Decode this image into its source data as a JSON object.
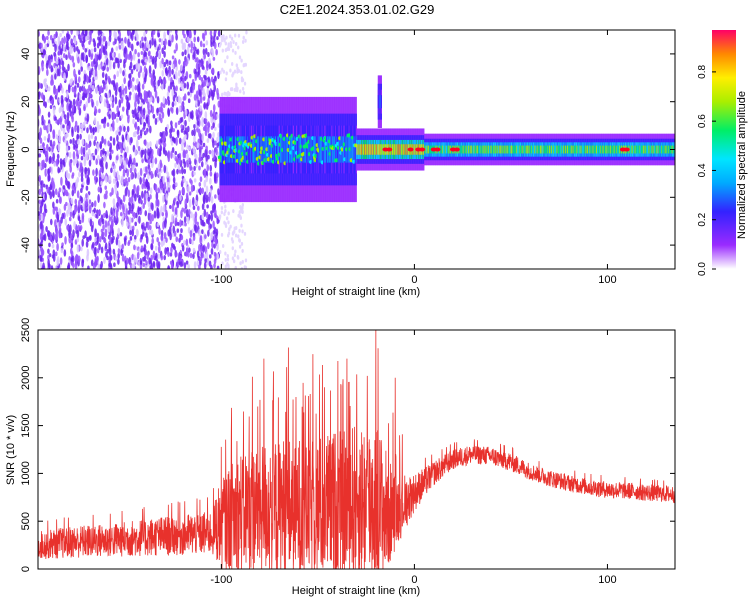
{
  "title": "C2E1.2024.353.01.02.G29",
  "colors": {
    "snr_line": "#e8312c",
    "noise_purple": "#7a2cf0",
    "spectrum_colormap": [
      "#ffffff",
      "#9a2bff",
      "#3322ff",
      "#00aaff",
      "#00e5ff",
      "#00ee66",
      "#aaee00",
      "#ffee00",
      "#ff8800",
      "#ff0022"
    ]
  },
  "chart_data": [
    {
      "type": "heatmap",
      "title": "C2E1.2024.353.01.02.G29",
      "xlabel": "Height of straight line (km)",
      "ylabel": "Frequency (Hz)",
      "xlim": [
        -195,
        135
      ],
      "ylim": [
        -50,
        50
      ],
      "x_ticks": [
        -100,
        0,
        100
      ],
      "y_ticks": [
        -40,
        -20,
        0,
        20,
        40
      ],
      "colorbar": {
        "label": "Normalized spectral amplitude",
        "range": [
          0,
          0.97
        ],
        "ticks": [
          "0.0",
          "0.2",
          "0.4",
          "0.6",
          "0.8"
        ]
      },
      "regions": [
        {
          "x_range": [
            -195,
            -101
          ],
          "frequency_spread_hz": [
            -50,
            50
          ],
          "amplitude": 0.1,
          "pattern": "scattered noise"
        },
        {
          "x_range": [
            -101,
            -30
          ],
          "frequency_center_hz": 0,
          "half_width_hz": 10,
          "amplitude": 0.35,
          "pattern": "broad signal"
        },
        {
          "x_range": [
            -30,
            5
          ],
          "frequency_center_hz": 0,
          "half_width_hz": 4,
          "amplitude": 0.9,
          "pattern": "narrowing signal"
        },
        {
          "x_range": [
            5,
            135
          ],
          "frequency_center_hz": 0,
          "half_width_hz": 3,
          "amplitude": 0.7,
          "pattern": "narrow line"
        },
        {
          "x_range": [
            -19,
            -17
          ],
          "frequency_center_hz": 20,
          "half_width_hz": 5,
          "amplitude": 0.3,
          "pattern": "spike"
        }
      ],
      "peak_markers_x": [
        -15,
        -13,
        -2,
        2,
        4,
        10,
        12,
        20,
        22,
        108,
        110
      ]
    },
    {
      "type": "line",
      "xlabel": "Height of straight line (km)",
      "ylabel": "SNR (10 * v/v)",
      "xlim": [
        -195,
        135
      ],
      "ylim": [
        0,
        2500
      ],
      "x_ticks": [
        -100,
        0,
        100
      ],
      "y_ticks": [
        0,
        500,
        1000,
        1500,
        2000,
        2500
      ],
      "series": [
        {
          "x": [
            -195,
            -180,
            -160,
            -140,
            -120,
            -105,
            -100,
            -90,
            -80,
            -70,
            -60,
            -50,
            -40,
            -30,
            -20,
            -15,
            -10,
            0,
            10,
            20,
            30,
            40,
            50,
            60,
            70,
            80,
            90,
            100,
            110,
            120,
            135
          ],
          "baseline": [
            250,
            280,
            300,
            330,
            360,
            380,
            500,
            600,
            650,
            650,
            640,
            650,
            680,
            700,
            700,
            600,
            600,
            800,
            1000,
            1150,
            1200,
            1180,
            1120,
            1020,
            950,
            900,
            860,
            830,
            820,
            800,
            780
          ],
          "spread": [
            150,
            170,
            180,
            200,
            220,
            240,
            500,
            650,
            700,
            750,
            750,
            750,
            800,
            850,
            900,
            700,
            400,
            200,
            130,
            110,
            100,
            100,
            100,
            90,
            90,
            90,
            90,
            90,
            90,
            90,
            90
          ]
        }
      ],
      "peaks": [
        {
          "x": -20,
          "y": 2500
        },
        {
          "x": -78,
          "y": 2200
        },
        {
          "x": -35,
          "y": 2200
        },
        {
          "x": -10,
          "y": 2000
        }
      ]
    }
  ]
}
